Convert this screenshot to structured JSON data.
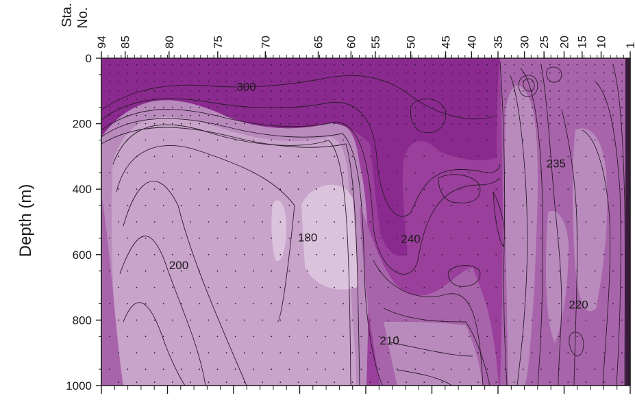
{
  "chart_data": {
    "type": "heatmap",
    "subtype": "filled-contour-section",
    "ylabel": "Depth (m)",
    "y_axis_inverted": true,
    "ylim": [
      0,
      1000
    ],
    "y_ticks": [
      0,
      200,
      400,
      600,
      800,
      1000
    ],
    "station_axis_label_line1": "Sta.",
    "station_axis_label_line2": "No.",
    "station_ticks": [
      "94",
      "85",
      "80",
      "75",
      "70",
      "65",
      "60",
      "55",
      "50",
      "45",
      "40",
      "35",
      "30",
      "25",
      "20",
      "15",
      "10",
      "1"
    ],
    "station_positions_frac": [
      0.0,
      0.045,
      0.128,
      0.22,
      0.31,
      0.41,
      0.472,
      0.518,
      0.585,
      0.651,
      0.7,
      0.75,
      0.8,
      0.837,
      0.875,
      0.909,
      0.945,
      1.0
    ],
    "x_bottom_major_tick_count": 9,
    "contour_interval_note": "levels from 180 to 300+",
    "contour_labels": [
      {
        "value": "300",
        "station": "72",
        "depth": 95
      },
      {
        "value": "240",
        "station": "50",
        "depth": 560
      },
      {
        "value": "235",
        "station": "22",
        "depth": 330
      },
      {
        "value": "180",
        "station": "66",
        "depth": 555
      },
      {
        "value": "200",
        "station": "79",
        "depth": 640
      },
      {
        "value": "210",
        "station": "53",
        "depth": 870
      },
      {
        "value": "220",
        "station": "16",
        "depth": 760
      }
    ],
    "color_levels": [
      {
        "band": ">= 280",
        "color": "#8a2a8e"
      },
      {
        "band": "240-280",
        "color": "#9a3f9c"
      },
      {
        "band": "220-240",
        "color": "#a864aa"
      },
      {
        "band": "200-220",
        "color": "#b98bbd"
      },
      {
        "band": "190-200",
        "color": "#c8a3ca"
      },
      {
        "band": "< 190",
        "color": "#dcc3dd"
      }
    ],
    "grid": false,
    "legend": "none"
  }
}
